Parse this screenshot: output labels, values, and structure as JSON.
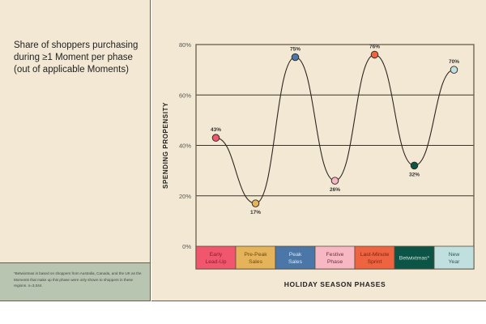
{
  "title": "Share of shoppers purchasing during ≥1 Moment per phase (out of applicable Moments)",
  "footnote": "*Betwixtmas is based on shoppers from Australia, Canada, and the UK as the Moments that make up this phase were only shown to shoppers in these regions. n=3,044.",
  "chart_data": {
    "type": "line",
    "xlabel": "HOLIDAY SEASON PHASES",
    "ylabel": "SPENDING PROPENSITY",
    "ylim": [
      0,
      80
    ],
    "yticks": [
      0,
      20,
      40,
      60,
      80
    ],
    "ytick_labels": [
      "0%",
      "20%",
      "40%",
      "60%",
      "80%"
    ],
    "grid": true,
    "categories": [
      {
        "label": [
          "Early",
          "Lead-Up"
        ],
        "color": "#f0566e",
        "text": "#8a1c30"
      },
      {
        "label": [
          "Pre-Peak",
          "Sales"
        ],
        "color": "#e5b45a",
        "text": "#6a4a12"
      },
      {
        "label": [
          "Peak",
          "Sales"
        ],
        "color": "#4b77a8",
        "text": "#dce8f4"
      },
      {
        "label": [
          "Festive",
          "Phase"
        ],
        "color": "#f7b8c4",
        "text": "#6a3040"
      },
      {
        "label": [
          "Last-Minute",
          "Sprint"
        ],
        "color": "#ef6440",
        "text": "#7a2210"
      },
      {
        "label": [
          "Betwixtmas*"
        ],
        "color": "#0c5446",
        "text": "#cfe3dc"
      },
      {
        "label": [
          "New",
          "Year"
        ],
        "color": "#bfe0df",
        "text": "#3b5555"
      }
    ],
    "values": [
      43,
      17,
      75,
      26,
      76,
      32,
      70
    ],
    "value_labels": [
      "43%",
      "17%",
      "75%",
      "26%",
      "76%",
      "32%",
      "70%"
    ]
  }
}
